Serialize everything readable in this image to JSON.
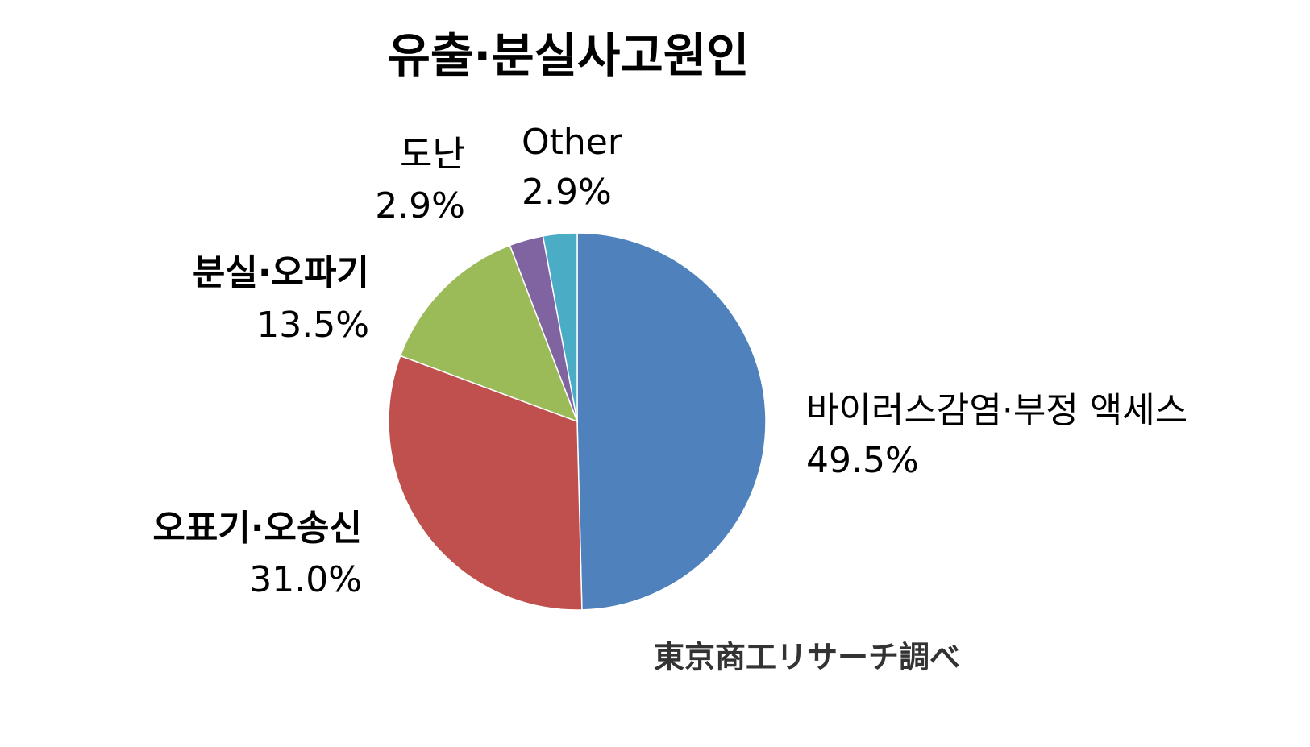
{
  "chart_data": {
    "type": "pie",
    "title": "유출·분실사고원인",
    "categories": [
      "바이러스감염·부정 액세스",
      "오표기·오송신",
      "분실·오파기",
      "도난",
      "Other"
    ],
    "values": [
      49.5,
      31.0,
      13.5,
      2.9,
      2.9
    ],
    "value_labels": [
      "49.5%",
      "31.0%",
      "13.5%",
      "2.9%",
      "2.9%"
    ],
    "colors": [
      "#4f81bd",
      "#c0504d",
      "#9bbb59",
      "#8064a2",
      "#4bacc6"
    ],
    "source": "東京商工リサーチ調べ"
  }
}
